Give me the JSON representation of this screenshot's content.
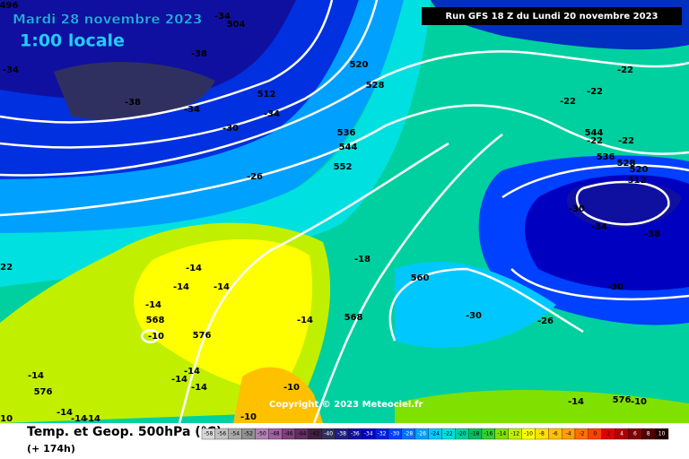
{
  "header": {
    "date": "Mardi 28 novembre 2023",
    "time": "1:00 locale",
    "run": "Run GFS 18 Z du Lundi 20 novembre 2023"
  },
  "footer": {
    "title": "Temp. et Geop. 500hPa (°C)",
    "lead": "(+ 174h)",
    "copyright": "Copyright © 2023 Meteociel.fr"
  },
  "legend": {
    "labels": [
      -58,
      -56,
      -54,
      -52,
      -50,
      -48,
      -46,
      -44,
      -42,
      -40,
      -38,
      -36,
      -34,
      -32,
      -30,
      -28,
      -26,
      -24,
      -22,
      -20,
      -18,
      -16,
      -14,
      -12,
      -10,
      -8,
      -6,
      -4,
      -2,
      0,
      2,
      4,
      6,
      8,
      10
    ],
    "colors": [
      "#d8d8d8",
      "#c0c0c0",
      "#a8a8a8",
      "#909090",
      "#b080b0",
      "#a060a0",
      "#804080",
      "#603060",
      "#402040",
      "#303060",
      "#202080",
      "#1010a0",
      "#0000c0",
      "#0020e0",
      "#0040ff",
      "#0070ff",
      "#00a0ff",
      "#00c8ff",
      "#00e0e0",
      "#00d0a0",
      "#00c060",
      "#30d030",
      "#80e000",
      "#c0f000",
      "#ffff00",
      "#ffe000",
      "#ffc000",
      "#ffa000",
      "#ff7000",
      "#ff4000",
      "#e00000",
      "#b00000",
      "#800000",
      "#500000",
      "#200000"
    ]
  },
  "map": {
    "labels": [
      -34,
      504,
      496,
      -34,
      -38,
      520,
      528,
      512,
      -38,
      -34,
      -34,
      -30,
      536,
      544,
      552,
      -26,
      -22,
      -22,
      -22,
      544,
      -22,
      -22,
      536,
      528,
      520,
      512,
      -30,
      -34,
      -38,
      -18,
      -22,
      -14,
      -14,
      -14,
      560,
      -30,
      -14,
      568,
      -10,
      -14,
      568,
      -30,
      -26,
      576,
      -14,
      -14,
      -14,
      -14,
      576,
      -10,
      -14,
      576,
      -10,
      -14,
      -14,
      -14,
      -10,
      -10
    ]
  }
}
